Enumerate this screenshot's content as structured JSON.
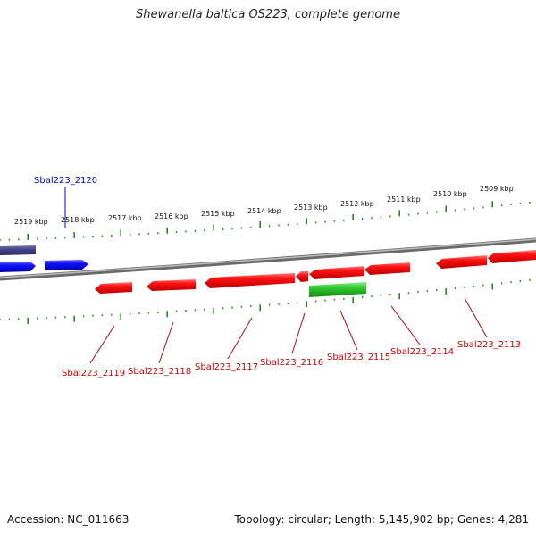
{
  "title": "Shewanella baltica OS223, complete genome",
  "footer": {
    "accession": "Accession: NC_011663",
    "topology": "Topology: circular; Length: 5,145,902 bp; Genes: 4,281"
  },
  "colors": {
    "forward_gene": "#ff0000",
    "reverse_gene_blue": "#0000ff",
    "dark_gene": "#3f3f8f",
    "green_gene": "#22bb22",
    "scale_tick": "#228822",
    "backbone": "#888888",
    "label_red": "#cc0000",
    "label_blue": "#0000cc"
  },
  "scale": {
    "labels": [
      "2519 kbp",
      "2518 kbp",
      "2517 kbp",
      "2516 kbp",
      "2515 kbp",
      "2514 kbp",
      "2513 kbp",
      "2512 kbp",
      "2511 kbp",
      "2510 kbp",
      "2509 kbp"
    ]
  },
  "gene_labels": [
    {
      "name": "Sbal223_2120",
      "strand": "upper"
    },
    {
      "name": "Sbal223_2119",
      "strand": "lower"
    },
    {
      "name": "Sbal223_2118",
      "strand": "lower"
    },
    {
      "name": "Sbal223_2117",
      "strand": "lower"
    },
    {
      "name": "Sbal223_2116",
      "strand": "lower"
    },
    {
      "name": "Sbal223_2115",
      "strand": "lower"
    },
    {
      "name": "Sbal223_2114",
      "strand": "lower"
    },
    {
      "name": "Sbal223_2113",
      "strand": "lower"
    }
  ]
}
